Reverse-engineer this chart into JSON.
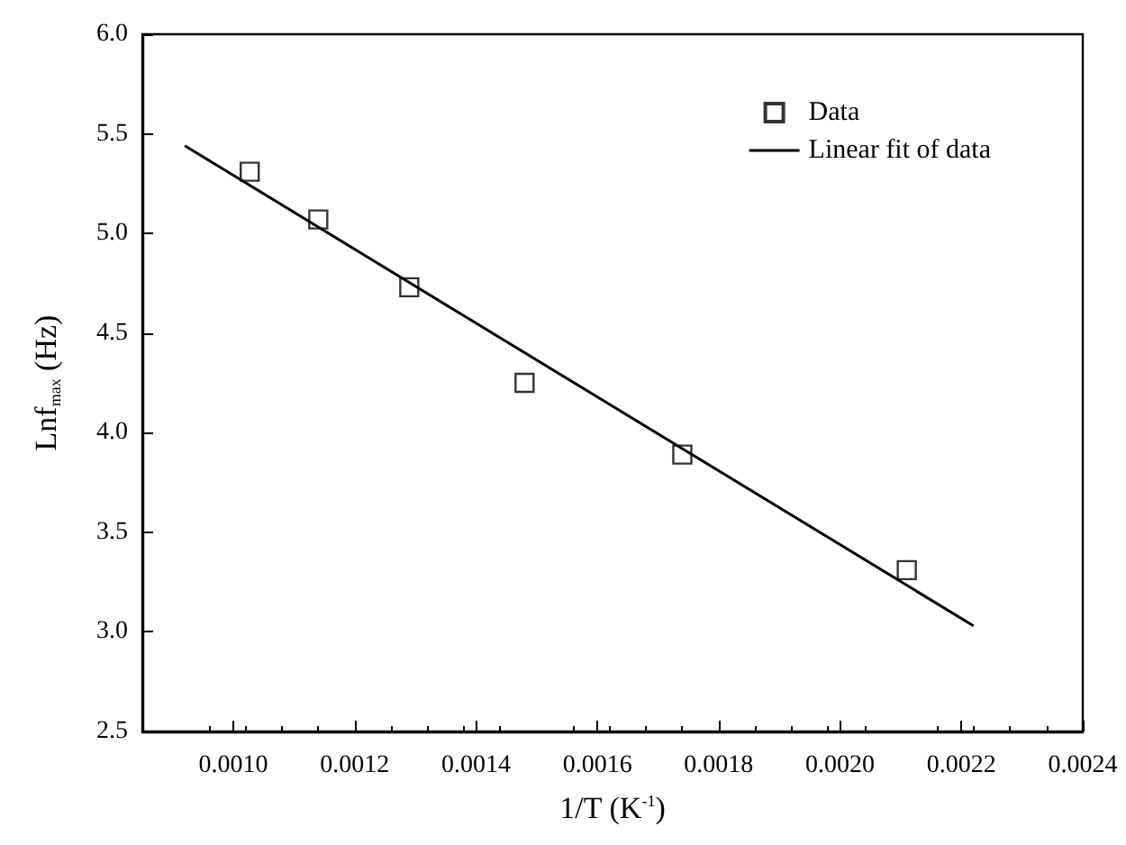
{
  "chart_data": {
    "type": "scatter",
    "xlabel": "1/T (K$^{-1}$)",
    "ylabel": "Lnf$_{max}$ (Hz)",
    "xlim": [
      0.00085,
      0.0024
    ],
    "xticks": [
      {
        "value": 0.001,
        "label": "0.0010"
      },
      0.0012,
      0.0014,
      0.0016,
      0.0018,
      {
        "value": 0.002,
        "label": "0.0020"
      },
      0.0022,
      0.0024
    ],
    "ylim": [
      2.5,
      6.0
    ],
    "yticks": [
      2.5,
      {
        "value": 3,
        "label": "3.0"
      },
      3.5,
      {
        "value": 4,
        "label": "4.0"
      },
      4.5,
      {
        "value": 5,
        "label": "5.0"
      },
      5.5,
      {
        "value": 6,
        "label": "6.0"
      }
    ],
    "grid": false,
    "legend": "top right",
    "marker": "square",
    "series": [
      {
        "name": "Data",
        "color": "#000000",
        "x": [
          0.001027,
          0.00114,
          0.00129,
          0.00148,
          0.00174,
          0.00211
        ],
        "values": [
          5.31,
          5.07,
          4.73,
          4.25,
          3.89,
          3.31
        ]
      },
      {
        "name": "Linear fit of data",
        "type": "line",
        "color": "#000000",
        "line_style": "solid",
        "marker": "none",
        "x": [
          0.00092,
          0.00222
        ],
        "values": [
          5.44,
          3.03
        ]
      }
    ]
  }
}
